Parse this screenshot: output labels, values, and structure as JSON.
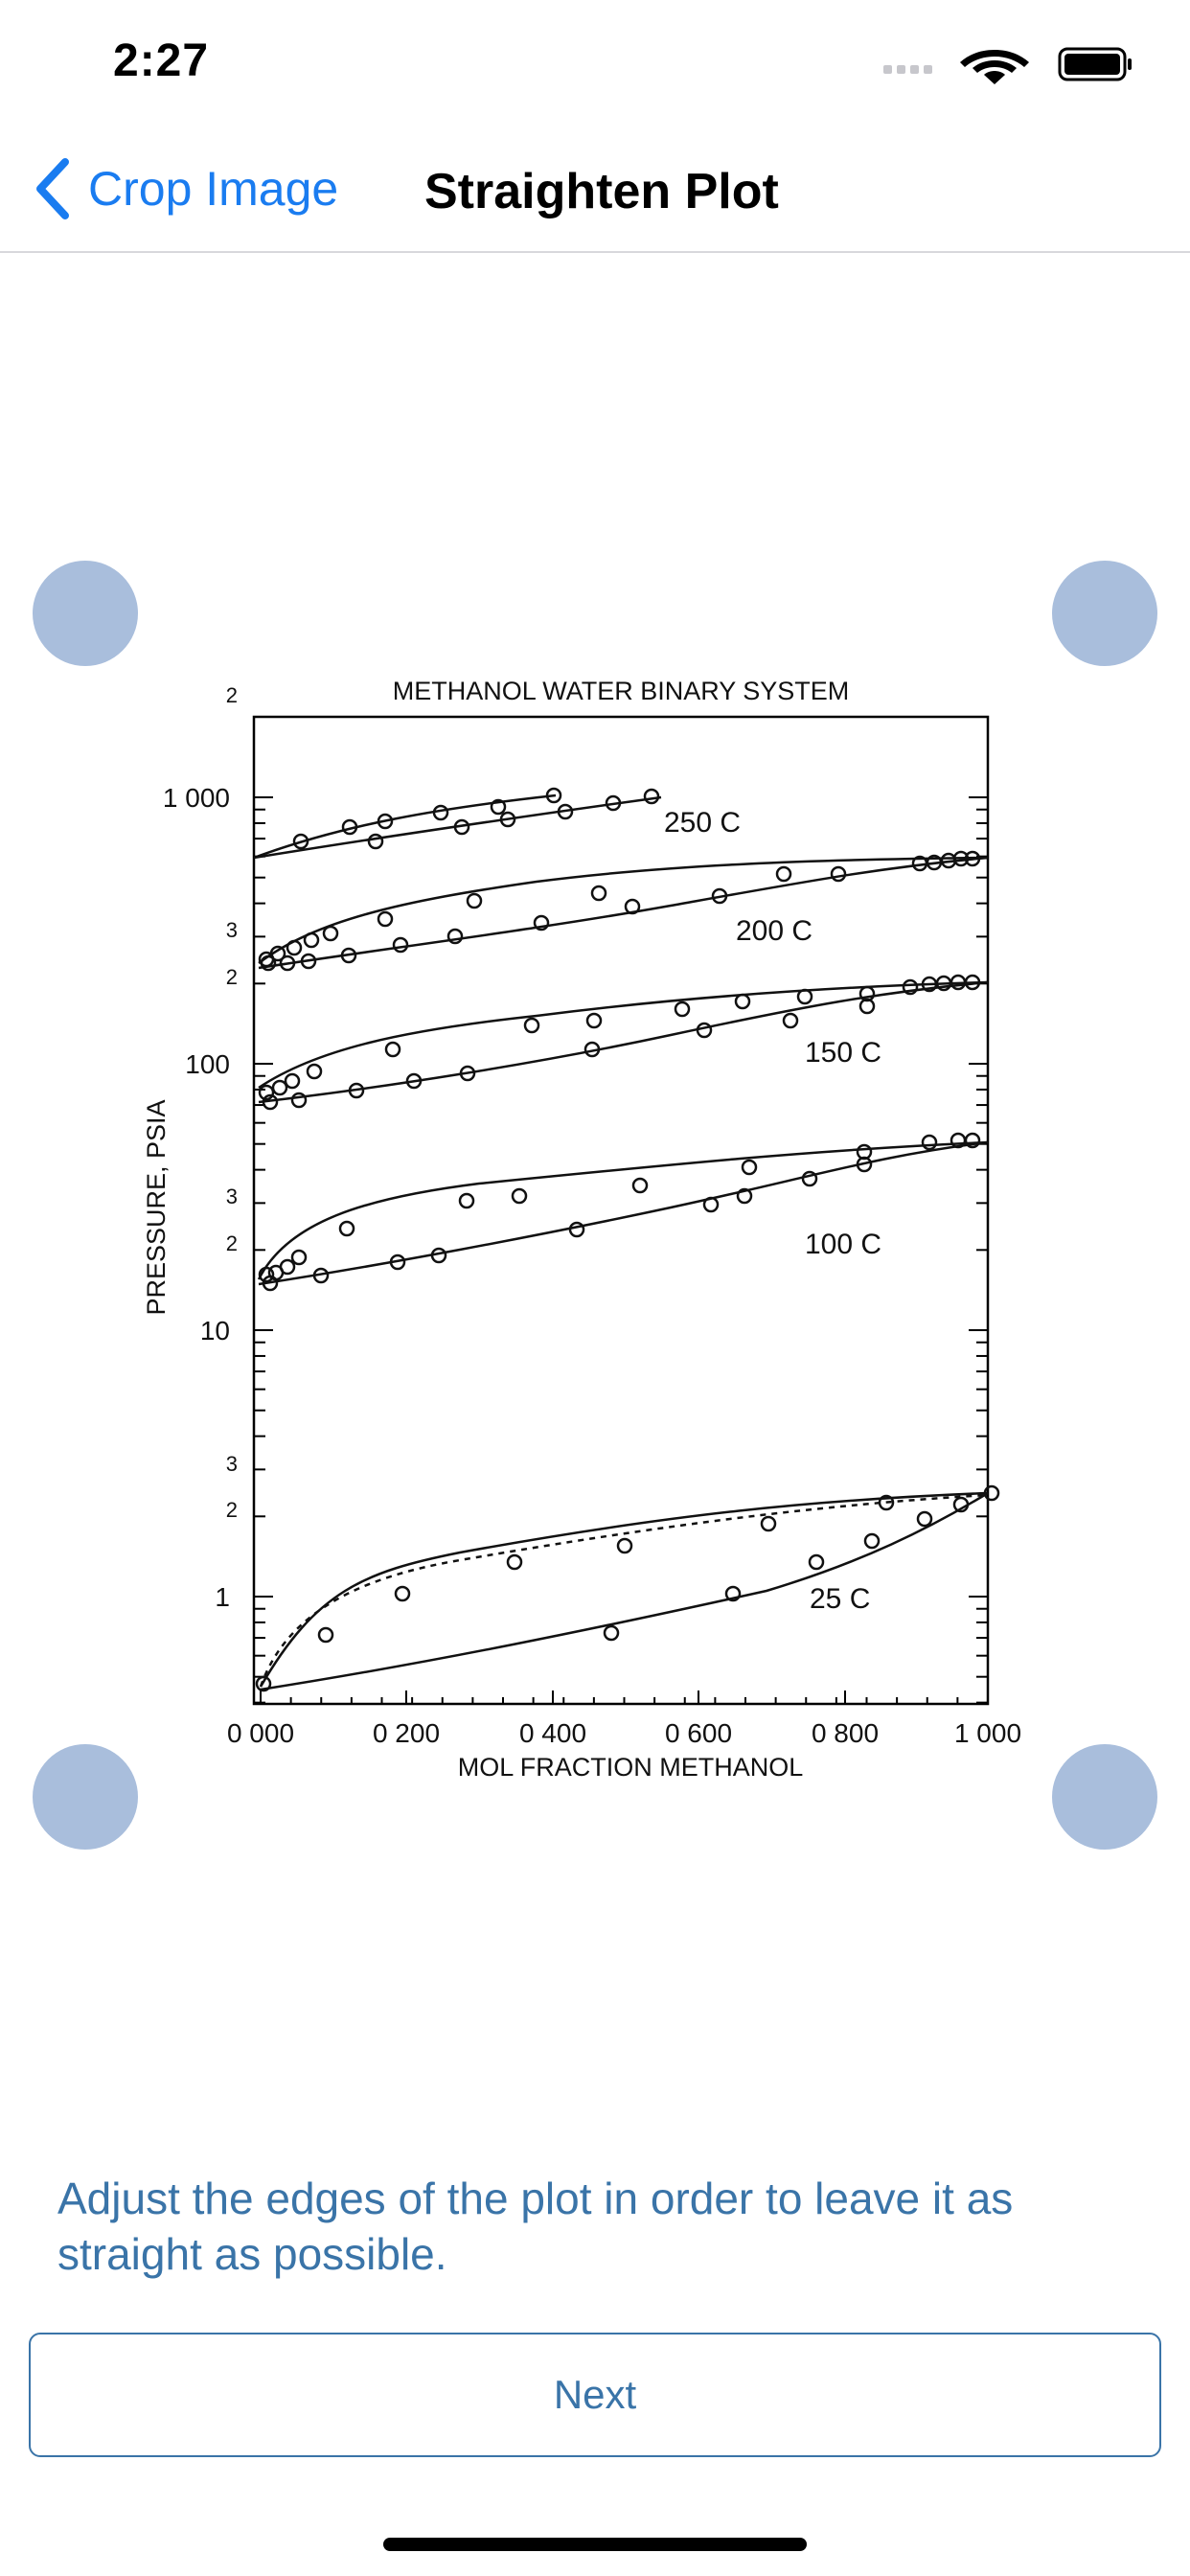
{
  "status": {
    "time": "2:27"
  },
  "nav": {
    "back_label": "Crop Image",
    "title": "Straighten Plot"
  },
  "plot_image": {
    "title": "METHANOL WATER BINARY SYSTEM",
    "xlabel": "MOL FRACTION METHANOL",
    "ylabel": "PRESSURE, PSIA",
    "x_ticks": [
      "0 000",
      "0 200",
      "0 400",
      "0 600",
      "0 800",
      "1 000"
    ],
    "y_decade_labels": [
      "1 000",
      "100",
      "10",
      "1"
    ],
    "y_minor_labels": [
      "2",
      "3",
      "2",
      "3",
      "2",
      "3",
      "2"
    ],
    "curve_labels": [
      "250 C",
      "200 C",
      "150 C",
      "100 C",
      "25 C"
    ]
  },
  "instruction": "Adjust the edges of the plot in order to leave it as straight as possible.",
  "next_label": "Next",
  "colors": {
    "accent": "#1a7cf0",
    "text_blue": "#3a74a8",
    "handle": "#a9bedc"
  }
}
